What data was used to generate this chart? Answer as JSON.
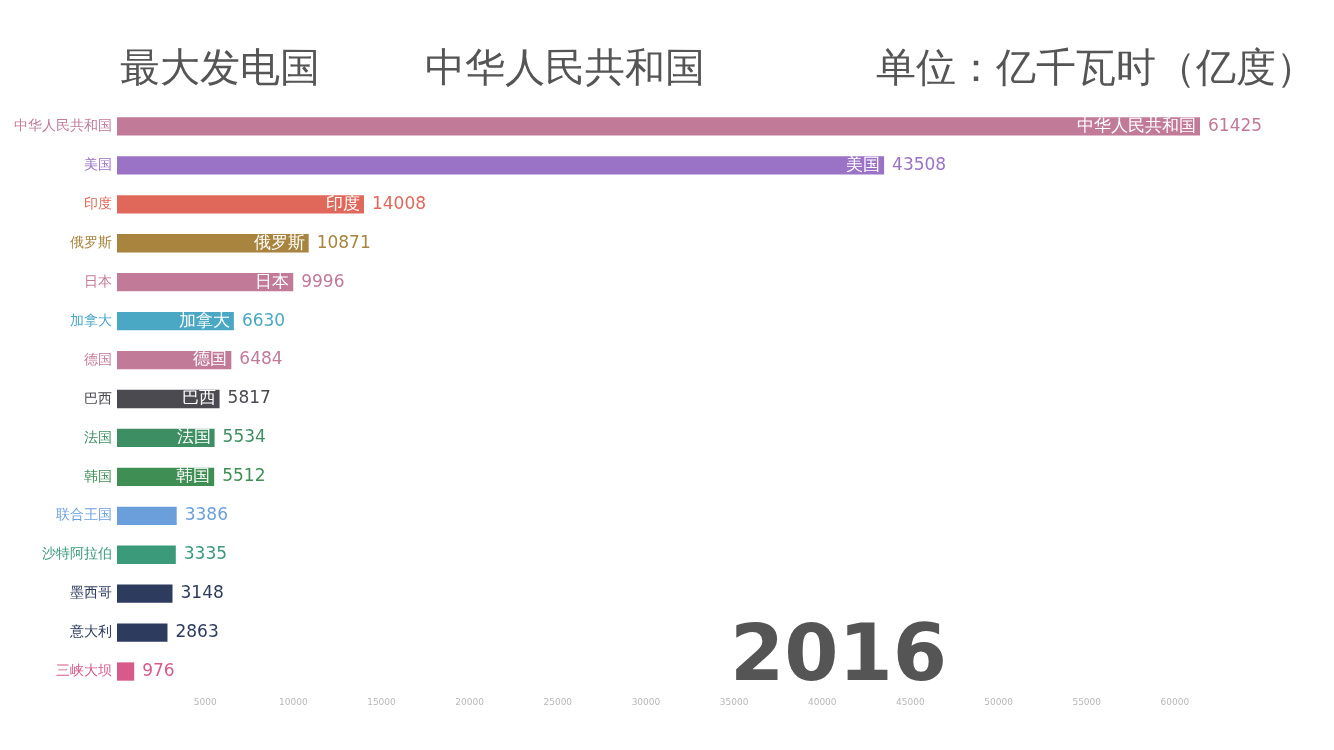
{
  "chart_data": {
    "type": "bar",
    "orientation": "horizontal",
    "title": "最大发电国",
    "subtitle": "中华人民共和国",
    "annotations": [
      "单位：亿千瓦时（亿度）",
      "2016"
    ],
    "categories": [
      "中华人民共和国",
      "美国",
      "印度",
      "俄罗斯",
      "日本",
      "加拿大",
      "德国",
      "巴西",
      "法国",
      "韩国",
      "联合王国",
      "沙特阿拉伯",
      "墨西哥",
      "意大利",
      "三峡大坝"
    ],
    "values": [
      61425,
      43508,
      14008,
      10871,
      9996,
      6630,
      6484,
      5817,
      5534,
      5512,
      3386,
      3335,
      3148,
      2863,
      976
    ],
    "colors": [
      "#c27a99",
      "#9a72c6",
      "#e0685a",
      "#a8843e",
      "#c27a99",
      "#4aa8c4",
      "#c27a99",
      "#4a4a50",
      "#3d8f63",
      "#3f8f55",
      "#6a9fdc",
      "#3a9a7a",
      "#2c3b5e",
      "#2c3b5e",
      "#d85a8a"
    ],
    "xlim": [
      0,
      61425
    ],
    "xticks": [
      5000,
      10000,
      15000,
      20000,
      25000,
      30000,
      35000,
      40000,
      45000,
      50000,
      55000,
      60000
    ],
    "data_labels": true
  }
}
